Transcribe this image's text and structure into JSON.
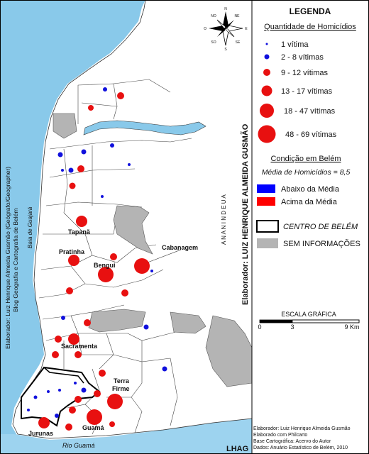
{
  "legend": {
    "title": "LEGENDA",
    "quantity_heading": "Quantidade de Homicídios",
    "classes": [
      {
        "label": "1 vítima",
        "color": "#1010dd"
      },
      {
        "label": "2 - 8 vítimas",
        "color": "#1010dd"
      },
      {
        "label": "9 - 12 vítimas",
        "color": "#e81010"
      },
      {
        "label": "13 - 17 vítimas",
        "color": "#e81010"
      },
      {
        "label": "18 - 47 vítimas",
        "color": "#e81010"
      },
      {
        "label": "48 - 69 vítimas",
        "color": "#e81010"
      }
    ],
    "condition_heading": "Condição em Belém",
    "mean_text": "Média de Homicídios = 8,5",
    "below_label": "Abaixo da Média",
    "above_label": "Acima da Média",
    "center_label": "CENTRO DE BELÉM",
    "no_info_label": "SEM INFORMAÇÕES",
    "colors": {
      "below": "#0000ff",
      "above": "#ff0000",
      "no_info": "#b4b4b4"
    }
  },
  "scale": {
    "title": "ESCALA GRÁFICA",
    "ticks": [
      "0",
      "3",
      "9 Km"
    ]
  },
  "compass": {
    "n": "N",
    "s": "S",
    "e": "E",
    "w": "O",
    "ne": "NE",
    "nw": "NO",
    "se": "SE",
    "sw": "SO"
  },
  "margins": {
    "left_author": "Elaborador: Luiz Henrique Almeida Gusmão (Geógrafo/Geographer)",
    "left_blog": "Blog Geografia e Cartografia de Belém",
    "center_author": "Elaborador: LUIZ HENRIQUE ALMEIDA GUSMÃO",
    "ananindeua": "A N A N I N D E U A",
    "baia": "Baía de Guajará",
    "rio": "Rio Guamá"
  },
  "neighborhoods": [
    "Tapanã",
    "Pratinha",
    "Bengui",
    "Cabanagem",
    "Sacramenta",
    "Terra Firme",
    "Jurunas",
    "Guamá"
  ],
  "credits": [
    "Elaborador: Luiz Henrique Almeida Gusmão",
    "Elaborado com Philcarto",
    "Base Cartográfica: Acervo do Autor",
    "Dados: Anuário Estatístico de Belém, 2010"
  ],
  "corner_tag": "LHAG"
}
